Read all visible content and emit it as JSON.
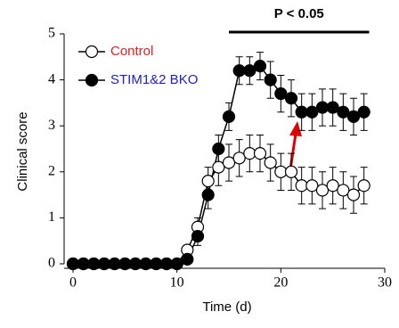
{
  "chart_data": {
    "type": "line",
    "xlabel": "Time (d)",
    "ylabel": "Clinical score",
    "x": [
      0,
      1,
      2,
      3,
      4,
      5,
      6,
      7,
      8,
      9,
      10,
      11,
      12,
      13,
      14,
      15,
      16,
      17,
      18,
      19,
      20,
      21,
      22,
      23,
      24,
      25,
      26,
      27,
      28
    ],
    "series": [
      {
        "name": "Control",
        "color": "#000000",
        "marker_fill": "#ffffff",
        "label_color": "#e02020",
        "values": [
          0,
          0,
          0,
          0,
          0,
          0,
          0,
          0,
          0,
          0,
          0,
          0.3,
          0.8,
          1.8,
          2.1,
          2.2,
          2.3,
          2.4,
          2.4,
          2.2,
          2.0,
          2.0,
          1.7,
          1.7,
          1.6,
          1.7,
          1.6,
          1.5,
          1.7
        ],
        "errors": [
          0,
          0,
          0,
          0,
          0,
          0,
          0,
          0,
          0,
          0,
          0,
          0.1,
          0.2,
          0.3,
          0.4,
          0.4,
          0.4,
          0.4,
          0.4,
          0.4,
          0.4,
          0.4,
          0.4,
          0.4,
          0.4,
          0.4,
          0.4,
          0.4,
          0.4
        ]
      },
      {
        "name": "STIM1&2 BKO",
        "color": "#000000",
        "marker_fill": "#000000",
        "label_color": "#2020c0",
        "values": [
          0,
          0,
          0,
          0,
          0,
          0,
          0,
          0,
          0,
          0,
          0,
          0.1,
          0.6,
          1.5,
          2.5,
          3.2,
          4.2,
          4.2,
          4.3,
          4.0,
          3.7,
          3.6,
          3.3,
          3.3,
          3.4,
          3.4,
          3.3,
          3.2,
          3.3
        ],
        "errors": [
          0,
          0,
          0,
          0,
          0,
          0,
          0,
          0,
          0,
          0,
          0,
          0.1,
          0.2,
          0.3,
          0.3,
          0.3,
          0.3,
          0.3,
          0.3,
          0.4,
          0.4,
          0.4,
          0.4,
          0.4,
          0.4,
          0.4,
          0.4,
          0.4,
          0.4
        ]
      }
    ],
    "xlim": [
      0,
      30
    ],
    "xticks": [
      0,
      10,
      20,
      30
    ],
    "ylim": [
      0,
      5
    ],
    "yticks": [
      0,
      1,
      2,
      3,
      4,
      5
    ],
    "grid": false,
    "legend": "upper left",
    "annotation": {
      "text": "P < 0.05",
      "x_range": [
        15,
        28.5
      ]
    }
  }
}
